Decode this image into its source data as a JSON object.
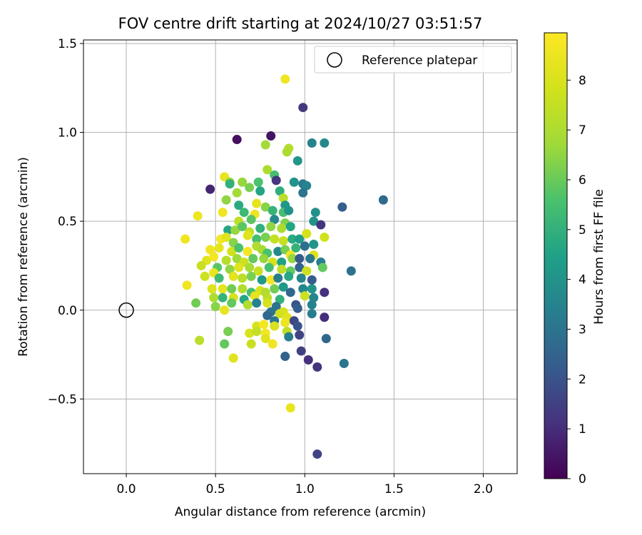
{
  "chart_data": {
    "type": "scatter",
    "title": "FOV centre drift starting at 2024/10/27 03:51:57",
    "xlabel": "Angular distance from reference (arcmin)",
    "ylabel": "Rotation from reference (arcmin)",
    "xlim": [
      -0.24,
      2.19
    ],
    "ylim": [
      -0.92,
      1.52
    ],
    "xticks": [
      "0.0",
      "0.5",
      "1.0",
      "1.5",
      "2.0"
    ],
    "xtick_values": [
      0.0,
      0.5,
      1.0,
      1.5,
      2.0
    ],
    "yticks": [
      "−0.5",
      "0.0",
      "0.5",
      "1.0",
      "1.5"
    ],
    "ytick_values": [
      -0.5,
      0.0,
      0.5,
      1.0,
      1.5
    ],
    "grid": true,
    "legend": {
      "placement": "top-right",
      "entries": [
        "Reference platepar"
      ]
    },
    "reference_point": {
      "x": 0.0,
      "y": 0.0,
      "label": "Reference platepar"
    },
    "colorbar": {
      "label": "Hours from first FF file",
      "min": 0,
      "max": 8.95,
      "ticks": [
        "0",
        "1",
        "2",
        "3",
        "4",
        "5",
        "6",
        "7",
        "8"
      ],
      "tick_values": [
        0,
        1,
        2,
        3,
        4,
        5,
        6,
        7,
        8
      ],
      "colormap": "viridis"
    },
    "series": [
      {
        "values": [
          {
            "x": 0.89,
            "y": 1.3,
            "c": 8.6
          },
          {
            "x": 0.99,
            "y": 1.14,
            "c": 1.3
          },
          {
            "x": 0.62,
            "y": 0.96,
            "c": 0.3
          },
          {
            "x": 0.81,
            "y": 0.98,
            "c": 0.4
          },
          {
            "x": 1.04,
            "y": 0.94,
            "c": 3.5
          },
          {
            "x": 1.11,
            "y": 0.94,
            "c": 3.7
          },
          {
            "x": 0.78,
            "y": 0.93,
            "c": 6.8
          },
          {
            "x": 0.91,
            "y": 0.91,
            "c": 7.2
          },
          {
            "x": 0.9,
            "y": 0.89,
            "c": 7.0
          },
          {
            "x": 0.96,
            "y": 0.84,
            "c": 4.1
          },
          {
            "x": 0.79,
            "y": 0.79,
            "c": 7.0
          },
          {
            "x": 0.83,
            "y": 0.76,
            "c": 5.5
          },
          {
            "x": 0.84,
            "y": 0.73,
            "c": 1.2
          },
          {
            "x": 0.55,
            "y": 0.75,
            "c": 8.4
          },
          {
            "x": 0.58,
            "y": 0.72,
            "c": 6.6
          },
          {
            "x": 0.58,
            "y": 0.71,
            "c": 5.0
          },
          {
            "x": 0.65,
            "y": 0.72,
            "c": 6.6
          },
          {
            "x": 0.69,
            "y": 0.69,
            "c": 6.2
          },
          {
            "x": 0.74,
            "y": 0.72,
            "c": 5.6
          },
          {
            "x": 0.94,
            "y": 0.72,
            "c": 4.0
          },
          {
            "x": 0.99,
            "y": 0.71,
            "c": 3.2
          },
          {
            "x": 1.01,
            "y": 0.7,
            "c": 3.5
          },
          {
            "x": 0.47,
            "y": 0.68,
            "c": 0.8
          },
          {
            "x": 0.62,
            "y": 0.66,
            "c": 6.8
          },
          {
            "x": 0.75,
            "y": 0.67,
            "c": 4.6
          },
          {
            "x": 0.86,
            "y": 0.67,
            "c": 4.9
          },
          {
            "x": 0.99,
            "y": 0.66,
            "c": 3.0
          },
          {
            "x": 0.56,
            "y": 0.62,
            "c": 6.5
          },
          {
            "x": 0.88,
            "y": 0.63,
            "c": 7.3
          },
          {
            "x": 1.44,
            "y": 0.62,
            "c": 2.7
          },
          {
            "x": 0.63,
            "y": 0.59,
            "c": 4.8
          },
          {
            "x": 0.73,
            "y": 0.6,
            "c": 8.3
          },
          {
            "x": 0.78,
            "y": 0.58,
            "c": 6.4
          },
          {
            "x": 0.89,
            "y": 0.59,
            "c": 4.2
          },
          {
            "x": 1.21,
            "y": 0.58,
            "c": 2.3
          },
          {
            "x": 0.4,
            "y": 0.53,
            "c": 8.5
          },
          {
            "x": 0.54,
            "y": 0.55,
            "c": 8.6
          },
          {
            "x": 0.66,
            "y": 0.55,
            "c": 5.3
          },
          {
            "x": 0.72,
            "y": 0.54,
            "c": 8.5
          },
          {
            "x": 0.82,
            "y": 0.56,
            "c": 5.1
          },
          {
            "x": 0.88,
            "y": 0.55,
            "c": 5.5
          },
          {
            "x": 0.91,
            "y": 0.56,
            "c": 4.0
          },
          {
            "x": 1.06,
            "y": 0.55,
            "c": 3.9
          },
          {
            "x": 0.63,
            "y": 0.5,
            "c": 7.4
          },
          {
            "x": 0.7,
            "y": 0.51,
            "c": 5.8
          },
          {
            "x": 0.83,
            "y": 0.51,
            "c": 3.7
          },
          {
            "x": 0.89,
            "y": 0.49,
            "c": 6.3
          },
          {
            "x": 1.05,
            "y": 0.5,
            "c": 4.0
          },
          {
            "x": 1.09,
            "y": 0.48,
            "c": 1.2
          },
          {
            "x": 0.57,
            "y": 0.45,
            "c": 4.6
          },
          {
            "x": 0.61,
            "y": 0.45,
            "c": 6.6
          },
          {
            "x": 0.65,
            "y": 0.47,
            "c": 5.8
          },
          {
            "x": 0.69,
            "y": 0.44,
            "c": 7.4
          },
          {
            "x": 0.75,
            "y": 0.46,
            "c": 5.0
          },
          {
            "x": 0.81,
            "y": 0.47,
            "c": 6.5
          },
          {
            "x": 0.87,
            "y": 0.46,
            "c": 7.0
          },
          {
            "x": 0.92,
            "y": 0.47,
            "c": 4.6
          },
          {
            "x": 0.33,
            "y": 0.4,
            "c": 8.6
          },
          {
            "x": 0.53,
            "y": 0.4,
            "c": 8.7
          },
          {
            "x": 0.56,
            "y": 0.41,
            "c": 8.2
          },
          {
            "x": 0.6,
            "y": 0.38,
            "c": 6.4
          },
          {
            "x": 0.68,
            "y": 0.42,
            "c": 8.2
          },
          {
            "x": 0.73,
            "y": 0.4,
            "c": 5.5
          },
          {
            "x": 0.78,
            "y": 0.41,
            "c": 6.2
          },
          {
            "x": 0.83,
            "y": 0.4,
            "c": 7.5
          },
          {
            "x": 0.88,
            "y": 0.39,
            "c": 7.6
          },
          {
            "x": 0.93,
            "y": 0.4,
            "c": 4.8
          },
          {
            "x": 0.97,
            "y": 0.4,
            "c": 4.3
          },
          {
            "x": 1.01,
            "y": 0.43,
            "c": 7.9
          },
          {
            "x": 1.11,
            "y": 0.41,
            "c": 7.8
          },
          {
            "x": 0.47,
            "y": 0.34,
            "c": 8.6
          },
          {
            "x": 0.52,
            "y": 0.35,
            "c": 8.3
          },
          {
            "x": 0.59,
            "y": 0.33,
            "c": 7.8
          },
          {
            "x": 0.63,
            "y": 0.35,
            "c": 5.6
          },
          {
            "x": 0.68,
            "y": 0.33,
            "c": 8.7
          },
          {
            "x": 0.73,
            "y": 0.36,
            "c": 7.1
          },
          {
            "x": 0.76,
            "y": 0.34,
            "c": 6.9
          },
          {
            "x": 0.79,
            "y": 0.32,
            "c": 5.6
          },
          {
            "x": 0.85,
            "y": 0.33,
            "c": 3.7
          },
          {
            "x": 0.89,
            "y": 0.34,
            "c": 6.2
          },
          {
            "x": 0.95,
            "y": 0.35,
            "c": 5.1
          },
          {
            "x": 1.0,
            "y": 0.36,
            "c": 2.8
          },
          {
            "x": 1.05,
            "y": 0.37,
            "c": 4.0
          },
          {
            "x": 0.92,
            "y": 0.31,
            "c": 8.6
          },
          {
            "x": 1.05,
            "y": 0.31,
            "c": 8.1
          },
          {
            "x": 0.45,
            "y": 0.28,
            "c": 8.2
          },
          {
            "x": 0.49,
            "y": 0.3,
            "c": 8.7
          },
          {
            "x": 0.56,
            "y": 0.28,
            "c": 7.2
          },
          {
            "x": 0.62,
            "y": 0.29,
            "c": 6.7
          },
          {
            "x": 0.66,
            "y": 0.27,
            "c": 7.7
          },
          {
            "x": 0.71,
            "y": 0.29,
            "c": 5.9
          },
          {
            "x": 0.77,
            "y": 0.29,
            "c": 6.6
          },
          {
            "x": 0.82,
            "y": 0.27,
            "c": 7.9
          },
          {
            "x": 0.87,
            "y": 0.27,
            "c": 4.5
          },
          {
            "x": 0.93,
            "y": 0.29,
            "c": 6.6
          },
          {
            "x": 0.97,
            "y": 0.29,
            "c": 2.2
          },
          {
            "x": 1.03,
            "y": 0.29,
            "c": 3.1
          },
          {
            "x": 1.09,
            "y": 0.27,
            "c": 3.3
          },
          {
            "x": 0.42,
            "y": 0.25,
            "c": 7.6
          },
          {
            "x": 0.51,
            "y": 0.24,
            "c": 5.8
          },
          {
            "x": 0.58,
            "y": 0.23,
            "c": 6.5
          },
          {
            "x": 0.63,
            "y": 0.24,
            "c": 8.2
          },
          {
            "x": 0.69,
            "y": 0.24,
            "c": 6.9
          },
          {
            "x": 0.74,
            "y": 0.22,
            "c": 7.6
          },
          {
            "x": 0.8,
            "y": 0.24,
            "c": 5.5
          },
          {
            "x": 0.87,
            "y": 0.23,
            "c": 7.4
          },
          {
            "x": 0.92,
            "y": 0.22,
            "c": 5.9
          },
          {
            "x": 0.97,
            "y": 0.24,
            "c": 2.4
          },
          {
            "x": 1.01,
            "y": 0.22,
            "c": 7.7
          },
          {
            "x": 1.1,
            "y": 0.24,
            "c": 5.9
          },
          {
            "x": 1.26,
            "y": 0.22,
            "c": 2.9
          },
          {
            "x": 0.44,
            "y": 0.19,
            "c": 7.7
          },
          {
            "x": 0.49,
            "y": 0.21,
            "c": 8.4
          },
          {
            "x": 0.52,
            "y": 0.18,
            "c": 5.3
          },
          {
            "x": 0.6,
            "y": 0.19,
            "c": 8.3
          },
          {
            "x": 0.65,
            "y": 0.18,
            "c": 7.3
          },
          {
            "x": 0.7,
            "y": 0.19,
            "c": 6.2
          },
          {
            "x": 0.76,
            "y": 0.17,
            "c": 4.2
          },
          {
            "x": 0.81,
            "y": 0.17,
            "c": 8.7
          },
          {
            "x": 0.85,
            "y": 0.18,
            "c": 3.3
          },
          {
            "x": 0.91,
            "y": 0.19,
            "c": 4.7
          },
          {
            "x": 0.98,
            "y": 0.18,
            "c": 3.6
          },
          {
            "x": 1.04,
            "y": 0.17,
            "c": 2.2
          },
          {
            "x": 0.34,
            "y": 0.14,
            "c": 8.6
          },
          {
            "x": 0.48,
            "y": 0.12,
            "c": 8.1
          },
          {
            "x": 0.54,
            "y": 0.12,
            "c": 8.3
          },
          {
            "x": 0.59,
            "y": 0.12,
            "c": 6.1
          },
          {
            "x": 0.65,
            "y": 0.12,
            "c": 7.1
          },
          {
            "x": 0.7,
            "y": 0.1,
            "c": 5.5
          },
          {
            "x": 0.75,
            "y": 0.11,
            "c": 8.0
          },
          {
            "x": 0.78,
            "y": 0.1,
            "c": 7.1
          },
          {
            "x": 0.83,
            "y": 0.12,
            "c": 6.1
          },
          {
            "x": 0.88,
            "y": 0.13,
            "c": 4.2
          },
          {
            "x": 0.92,
            "y": 0.1,
            "c": 2.6
          },
          {
            "x": 0.99,
            "y": 0.12,
            "c": 3.6
          },
          {
            "x": 1.04,
            "y": 0.12,
            "c": 4.0
          },
          {
            "x": 1.11,
            "y": 0.1,
            "c": 1.1
          },
          {
            "x": 0.49,
            "y": 0.07,
            "c": 7.0
          },
          {
            "x": 0.54,
            "y": 0.07,
            "c": 5.1
          },
          {
            "x": 0.6,
            "y": 0.07,
            "c": 7.9
          },
          {
            "x": 0.66,
            "y": 0.06,
            "c": 4.6
          },
          {
            "x": 0.72,
            "y": 0.08,
            "c": 8.3
          },
          {
            "x": 0.79,
            "y": 0.07,
            "c": 7.3
          },
          {
            "x": 0.86,
            "y": 0.06,
            "c": 5.0
          },
          {
            "x": 1.0,
            "y": 0.08,
            "c": 7.7
          },
          {
            "x": 1.05,
            "y": 0.07,
            "c": 3.6
          },
          {
            "x": 0.39,
            "y": 0.04,
            "c": 6.1
          },
          {
            "x": 0.5,
            "y": 0.02,
            "c": 6.4
          },
          {
            "x": 0.59,
            "y": 0.04,
            "c": 5.9
          },
          {
            "x": 0.68,
            "y": 0.03,
            "c": 7.1
          },
          {
            "x": 0.73,
            "y": 0.04,
            "c": 3.5
          },
          {
            "x": 0.79,
            "y": 0.04,
            "c": 7.9
          },
          {
            "x": 0.84,
            "y": 0.02,
            "c": 3.0
          },
          {
            "x": 0.95,
            "y": 0.03,
            "c": 2.0
          },
          {
            "x": 1.04,
            "y": 0.03,
            "c": 3.5
          },
          {
            "x": 0.55,
            "y": 0.0,
            "c": 8.4
          },
          {
            "x": 0.81,
            "y": -0.01,
            "c": 3.0
          },
          {
            "x": 0.88,
            "y": -0.01,
            "c": 8.0
          },
          {
            "x": 0.96,
            "y": 0.01,
            "c": 2.3
          },
          {
            "x": 0.79,
            "y": -0.03,
            "c": 2.6
          },
          {
            "x": 0.86,
            "y": -0.02,
            "c": 7.8
          },
          {
            "x": 0.9,
            "y": -0.04,
            "c": 8.2
          },
          {
            "x": 1.04,
            "y": -0.02,
            "c": 3.3
          },
          {
            "x": 1.11,
            "y": -0.04,
            "c": 1.0
          },
          {
            "x": 0.83,
            "y": -0.06,
            "c": 3.1
          },
          {
            "x": 0.94,
            "y": -0.06,
            "c": 1.7
          },
          {
            "x": 0.73,
            "y": -0.09,
            "c": 8.0
          },
          {
            "x": 0.77,
            "y": -0.08,
            "c": 8.7
          },
          {
            "x": 0.83,
            "y": -0.09,
            "c": 8.0
          },
          {
            "x": 0.89,
            "y": -0.07,
            "c": 8.5
          },
          {
            "x": 0.96,
            "y": -0.09,
            "c": 2.0
          },
          {
            "x": 0.57,
            "y": -0.12,
            "c": 6.2
          },
          {
            "x": 0.69,
            "y": -0.13,
            "c": 8.0
          },
          {
            "x": 0.73,
            "y": -0.12,
            "c": 7.5
          },
          {
            "x": 0.78,
            "y": -0.13,
            "c": 8.7
          },
          {
            "x": 0.9,
            "y": -0.12,
            "c": 7.4
          },
          {
            "x": 0.91,
            "y": -0.15,
            "c": 3.3
          },
          {
            "x": 0.97,
            "y": -0.14,
            "c": 1.6
          },
          {
            "x": 1.12,
            "y": -0.16,
            "c": 2.6
          },
          {
            "x": 0.41,
            "y": -0.17,
            "c": 7.3
          },
          {
            "x": 0.78,
            "y": -0.16,
            "c": 8.2
          },
          {
            "x": 0.55,
            "y": -0.19,
            "c": 5.9
          },
          {
            "x": 0.7,
            "y": -0.19,
            "c": 7.6
          },
          {
            "x": 0.82,
            "y": -0.19,
            "c": 8.6
          },
          {
            "x": 0.89,
            "y": -0.26,
            "c": 2.4
          },
          {
            "x": 0.98,
            "y": -0.23,
            "c": 1.5
          },
          {
            "x": 0.6,
            "y": -0.27,
            "c": 8.2
          },
          {
            "x": 1.02,
            "y": -0.28,
            "c": 1.1
          },
          {
            "x": 1.07,
            "y": -0.32,
            "c": 1.2
          },
          {
            "x": 1.22,
            "y": -0.3,
            "c": 3.0
          },
          {
            "x": 0.92,
            "y": -0.55,
            "c": 8.4
          },
          {
            "x": 1.07,
            "y": -0.81,
            "c": 1.6
          }
        ]
      }
    ]
  }
}
